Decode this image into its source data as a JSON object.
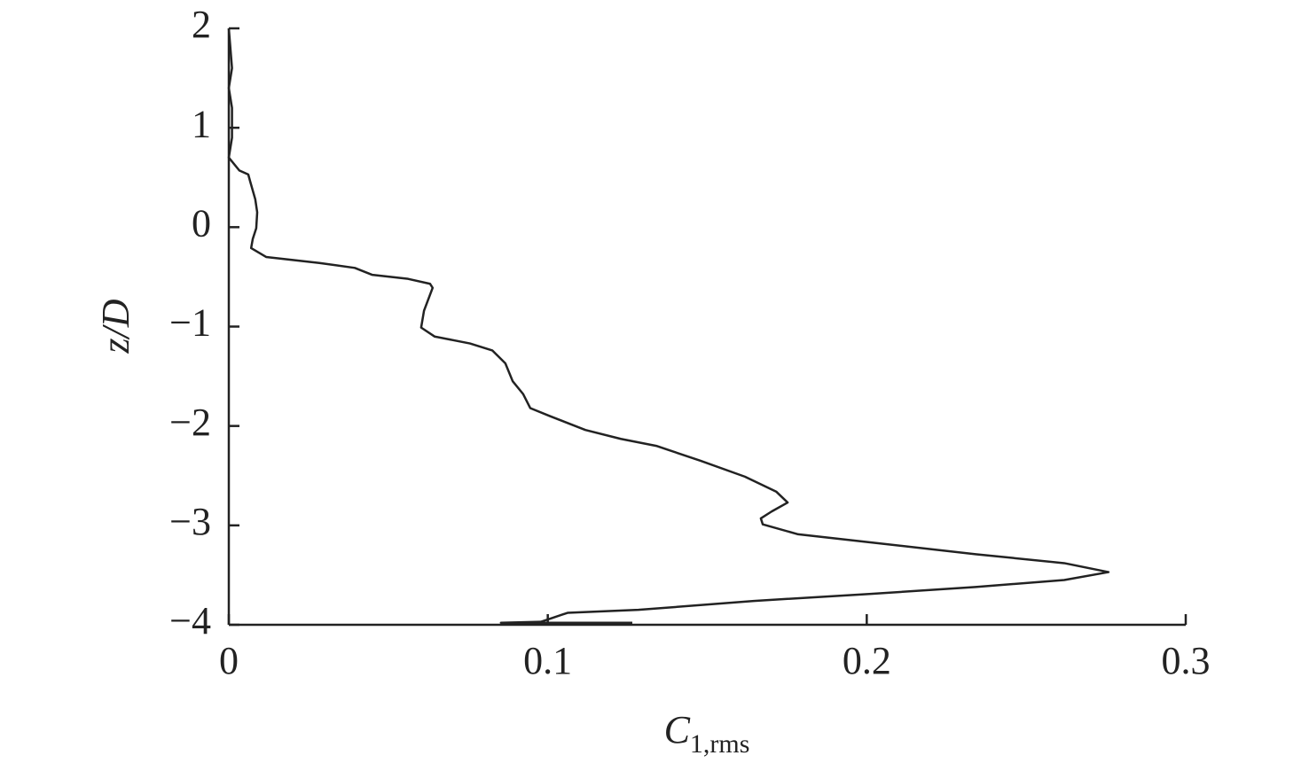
{
  "chart_data": {
    "type": "line",
    "xlabel": {
      "text": "C",
      "subscript": "1,rms"
    },
    "ylabel": "z/D",
    "xlim": [
      0,
      0.3
    ],
    "xticks": [
      0,
      0.1,
      0.2,
      0.3
    ],
    "ylim": [
      -4,
      2
    ],
    "yticks": [
      {
        "value": -4,
        "label": "−4"
      },
      {
        "value": -3,
        "label": "−3"
      },
      {
        "value": -2,
        "label": "−2"
      },
      {
        "value": -1,
        "label": "−1"
      },
      0,
      1,
      2
    ],
    "color": "#222222",
    "x": [
      0,
      0.001,
      0,
      0.001,
      0.001,
      0,
      0.0033,
      0.0061,
      0.0067,
      0.0083,
      0.0089,
      0.0086,
      0.0075,
      0.007,
      0.0117,
      0.0284,
      0.0395,
      0.045,
      0.0562,
      0.0631,
      0.0639,
      0.0612,
      0.0603,
      0.0645,
      0.0756,
      0.0826,
      0.0867,
      0.089,
      0.0923,
      0.0945,
      0.1006,
      0.1118,
      0.1229,
      0.134,
      0.1479,
      0.1618,
      0.1716,
      0.1752,
      0.1702,
      0.1668,
      0.1674,
      0.1785,
      0.2008,
      0.2341,
      0.2619,
      0.2758,
      0.2619,
      0.2341,
      0.2008,
      0.1646,
      0.1284,
      0.1062,
      0.1006,
      0.0978,
      0.0853,
      0.1265
    ],
    "y": [
      2,
      1.6,
      1.4,
      1.2,
      0.9,
      0.7,
      0.57,
      0.53,
      0.46,
      0.28,
      0.15,
      -0.01,
      -0.12,
      -0.21,
      -0.3,
      -0.36,
      -0.41,
      -0.48,
      -0.52,
      -0.57,
      -0.61,
      -0.84,
      -1.01,
      -1.1,
      -1.17,
      -1.24,
      -1.37,
      -1.55,
      -1.68,
      -1.82,
      -1.9,
      -2.04,
      -2.13,
      -2.2,
      -2.35,
      -2.51,
      -2.66,
      -2.77,
      -2.86,
      -2.93,
      -2.99,
      -3.09,
      -3.17,
      -3.29,
      -3.38,
      -3.47,
      -3.55,
      -3.62,
      -3.69,
      -3.76,
      -3.85,
      -3.88,
      -3.94,
      -3.97,
      -3.98,
      -3.98
    ]
  }
}
